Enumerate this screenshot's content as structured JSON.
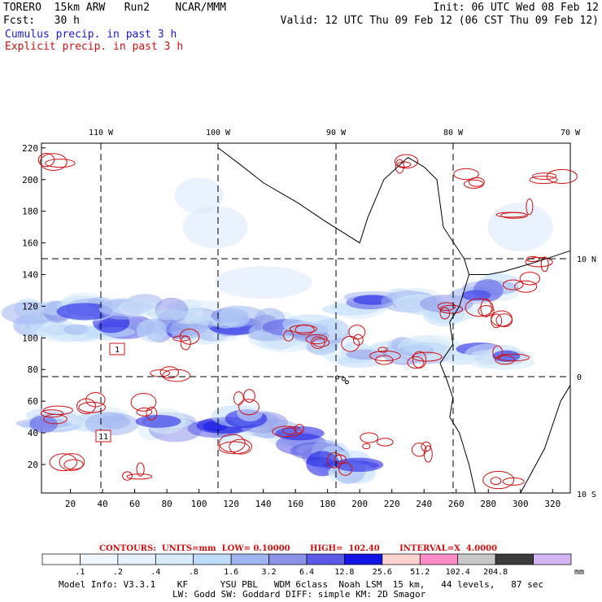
{
  "header": {
    "model": "TORERO  15km ARW   Run2    NCAR/MMM",
    "init": "Init: 06 UTC Wed 08 Feb 12",
    "fcst": "Fcst:   30 h",
    "valid": "Valid: 12 UTC Thu 09 Feb 12 (06 CST Thu 09 Feb 12)",
    "cumulus": "Cumulus precip. in past 3 h",
    "explicit": "Explicit precip. in past 3 h"
  },
  "colors": {
    "cumulus": "#1a1adc",
    "explicit_contour": "#d01010",
    "coast": "#000000"
  },
  "chart_data": {
    "type": "heatmap",
    "x_ticks": [
      20,
      40,
      60,
      80,
      100,
      120,
      140,
      160,
      180,
      200,
      220,
      240,
      260,
      280,
      300,
      320
    ],
    "y_ticks": [
      20,
      40,
      60,
      80,
      100,
      120,
      140,
      160,
      180,
      200,
      220
    ],
    "lon_labels": [
      "110 W",
      "100 W",
      "90 W",
      "80 W",
      "70 W"
    ],
    "lat_labels": [
      "10 N",
      "0",
      "10 S"
    ],
    "box_labels": [
      "1",
      "11"
    ],
    "contours": {
      "text": "CONTOURS:  UNITS=mm  LOW= 0.10000       HIGH=  102.40       INTERVAL=X  4.0000"
    },
    "colorbar": {
      "labels": [
        ".1",
        ".2",
        ".4",
        ".8",
        "1.6",
        "3.2",
        "6.4",
        "12.8",
        "25.6",
        "51.2",
        "102.4",
        "204.8"
      ],
      "unit": "mm",
      "colors": [
        "#ffffff",
        "#f2f7ff",
        "#e6f0ff",
        "#d7ebfa",
        "#bfdcfa",
        "#a0b4f0",
        "#8a93e8",
        "#5a5ae6",
        "#1414e6",
        "#ffd2d2",
        "#ff8cc8",
        "#c8c8c8",
        "#3c3c3c",
        "#d2b4f5"
      ]
    }
  },
  "footer": {
    "line1": "Model Info: V3.3.1    KF      YSU PBL   WDM 6class  Noah LSM  15 km,   44 levels,   87 sec",
    "line2": "LW: Godd SW: Goddard DIFF: simple KM: 2D Smagor"
  }
}
